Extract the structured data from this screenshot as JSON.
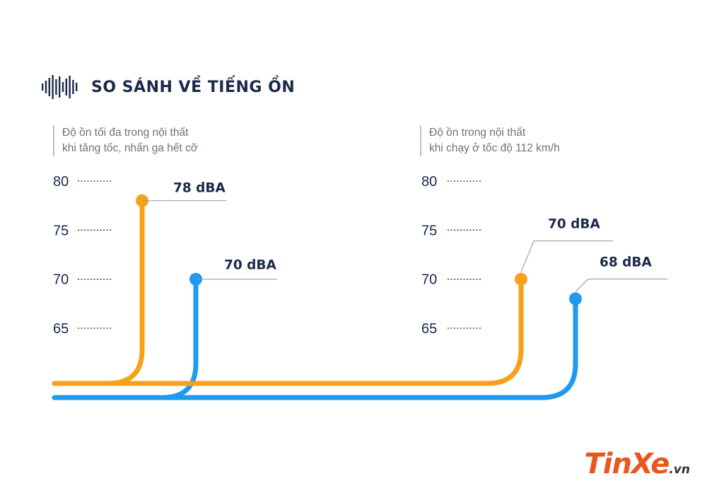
{
  "title": "SO SÁNH VỀ TIẾNG ỒN",
  "title_icon": "sound-wave-icon",
  "colors": {
    "orange": "#f7a11a",
    "blue": "#1e9af0",
    "text_dark": "#1b2a4a",
    "tick": "#1b2a4a"
  },
  "watermark": {
    "main": "TinXe",
    "suffix": ".vn"
  },
  "chart_data": [
    {
      "type": "line",
      "subtitle": [
        "Độ ồn tối đa trong nội thất",
        "khi tăng tốc, nhấn ga hết cỡ"
      ],
      "y_ticks": [
        80,
        75,
        70,
        65
      ],
      "ylim": [
        65,
        80
      ],
      "unit": "dBA",
      "series": [
        {
          "value": 78,
          "label": "78 dBA",
          "color": "#f7a11a"
        },
        {
          "value": 70,
          "label": "70 dBA",
          "color": "#1e9af0"
        }
      ]
    },
    {
      "type": "line",
      "subtitle": [
        "Độ ồn trong nội thất",
        "khi chạy ở tốc độ 112 km/h"
      ],
      "y_ticks": [
        80,
        75,
        70,
        65
      ],
      "ylim": [
        65,
        80
      ],
      "unit": "dBA",
      "series": [
        {
          "value": 70,
          "label": "70 dBA",
          "color": "#f7a11a"
        },
        {
          "value": 68,
          "label": "68 dBA",
          "color": "#1e9af0"
        }
      ]
    }
  ]
}
